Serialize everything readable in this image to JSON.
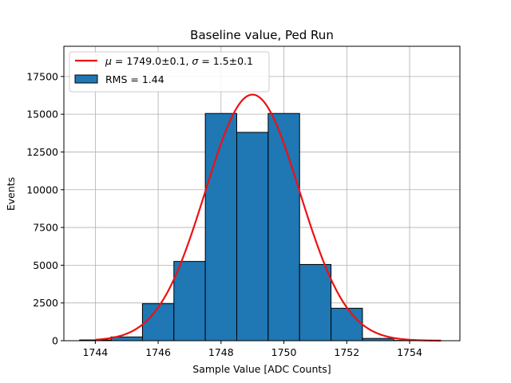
{
  "chart_data": {
    "type": "bar",
    "title": "Baseline value, Ped Run",
    "xlabel": "Sample Value [ADC Counts]",
    "ylabel": "Events",
    "xlim": [
      1743.0,
      1755.6
    ],
    "ylim": [
      0,
      19500
    ],
    "xticks": [
      1744,
      1746,
      1748,
      1750,
      1752,
      1754
    ],
    "yticks": [
      0,
      2500,
      5000,
      7500,
      10000,
      12500,
      15000,
      17500
    ],
    "grid": true,
    "legend_position": "top-left",
    "histogram": {
      "name": "RMS = 1.44",
      "bin_edges": [
        1743.5,
        1744.5,
        1745.5,
        1746.5,
        1747.5,
        1748.5,
        1749.5,
        1750.5,
        1751.5,
        1752.5,
        1753.5,
        1754.5
      ],
      "values": [
        50,
        250,
        2450,
        5250,
        15050,
        13800,
        15050,
        5050,
        2150,
        150,
        20
      ],
      "color": "#1f77b4"
    },
    "fit": {
      "name_mu_prefix": "μ",
      "name_mu_value": " = 1749.0±0.1, ",
      "name_sigma_prefix": "σ",
      "name_sigma_value": " = 1.5±0.1",
      "type": "gaussian",
      "mu": 1749.0,
      "sigma": 1.5,
      "amplitude": 16300,
      "x_range": [
        1744.0,
        1755.0
      ],
      "color": "#ee1111"
    }
  }
}
